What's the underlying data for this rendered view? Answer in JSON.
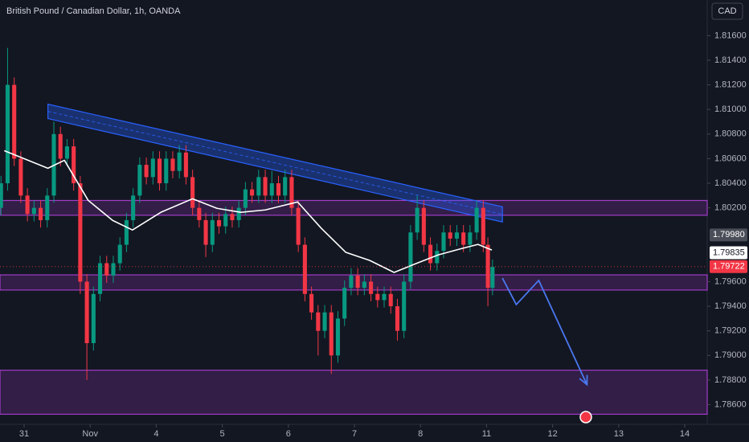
{
  "chart_data": {
    "type": "candlestick",
    "title": "British Pound / Canadian Dollar, 1h, OANDA",
    "currency_button": "CAD",
    "up_color": "#089981",
    "down_color": "#f23645",
    "xlim": [
      -0.365,
      10.34
    ],
    "xticks": [
      {
        "value": 0,
        "label": "31"
      },
      {
        "value": 1,
        "label": "Nov"
      },
      {
        "value": 2,
        "label": "4"
      },
      {
        "value": 3,
        "label": "5"
      },
      {
        "value": 4,
        "label": "6"
      },
      {
        "value": 5,
        "label": "7"
      },
      {
        "value": 6,
        "label": "8"
      },
      {
        "value": 7,
        "label": "11"
      },
      {
        "value": 8,
        "label": "12"
      },
      {
        "value": 9,
        "label": "13"
      },
      {
        "value": 10,
        "label": "14"
      }
    ],
    "ylim": [
      1.7844,
      1.8189
    ],
    "yticks": [
      {
        "value": 1.816,
        "label": "1.81600"
      },
      {
        "value": 1.814,
        "label": "1.81400"
      },
      {
        "value": 1.812,
        "label": "1.81200"
      },
      {
        "value": 1.81,
        "label": "1.81000"
      },
      {
        "value": 1.808,
        "label": "1.80800"
      },
      {
        "value": 1.806,
        "label": "1.80600"
      },
      {
        "value": 1.804,
        "label": "1.80400"
      },
      {
        "value": 1.802,
        "label": "1.80200"
      },
      {
        "value": 1.796,
        "label": "1.79600"
      },
      {
        "value": 1.794,
        "label": "1.79400"
      },
      {
        "value": 1.792,
        "label": "1.79200"
      },
      {
        "value": 1.79,
        "label": "1.79000"
      },
      {
        "value": 1.788,
        "label": "1.78800"
      },
      {
        "value": 1.786,
        "label": "1.78600"
      }
    ],
    "candles": [
      [
        -0.35,
        1.802,
        1.8046,
        1.8014,
        1.804
      ],
      [
        -0.25,
        1.804,
        1.815,
        1.8034,
        1.812
      ],
      [
        -0.15,
        1.812,
        1.8126,
        1.8054,
        1.806
      ],
      [
        -0.05,
        1.806,
        1.8066,
        1.8024,
        1.803
      ],
      [
        0.05,
        1.803,
        1.8036,
        1.8009,
        1.8015
      ],
      [
        0.15,
        1.8015,
        1.8026,
        1.8009,
        1.802
      ],
      [
        0.25,
        1.802,
        1.8026,
        1.8004,
        1.801
      ],
      [
        0.35,
        1.801,
        1.8036,
        1.8004,
        1.803
      ],
      [
        0.45,
        1.803,
        1.809,
        1.8024,
        1.808
      ],
      [
        0.55,
        1.808,
        1.8086,
        1.8054,
        1.806
      ],
      [
        0.65,
        1.806,
        1.8076,
        1.8054,
        1.807
      ],
      [
        0.75,
        1.807,
        1.8076,
        1.8034,
        1.804
      ],
      [
        0.85,
        1.804,
        1.8046,
        1.795,
        1.796
      ],
      [
        0.95,
        1.796,
        1.7966,
        1.788,
        1.791
      ],
      [
        1.05,
        1.791,
        1.7956,
        1.7904,
        1.795
      ],
      [
        1.15,
        1.795,
        1.7981,
        1.7944,
        1.7975
      ],
      [
        1.25,
        1.7975,
        1.7981,
        1.7959,
        1.7965
      ],
      [
        1.35,
        1.7965,
        1.7981,
        1.7959,
        1.7975
      ],
      [
        1.45,
        1.7975,
        1.7996,
        1.7969,
        1.799
      ],
      [
        1.55,
        1.799,
        1.8016,
        1.7984,
        1.801
      ],
      [
        1.65,
        1.801,
        1.8036,
        1.8004,
        1.803
      ],
      [
        1.75,
        1.803,
        1.8061,
        1.8024,
        1.8055
      ],
      [
        1.85,
        1.8055,
        1.8061,
        1.8039,
        1.8045
      ],
      [
        1.95,
        1.8045,
        1.8066,
        1.8039,
        1.806
      ],
      [
        2.05,
        1.806,
        1.8066,
        1.8034,
        1.804
      ],
      [
        2.15,
        1.804,
        1.8066,
        1.8034,
        1.806
      ],
      [
        2.25,
        1.806,
        1.8066,
        1.8044,
        1.805
      ],
      [
        2.35,
        1.805,
        1.8071,
        1.8044,
        1.8065
      ],
      [
        2.45,
        1.8065,
        1.8071,
        1.8039,
        1.8045
      ],
      [
        2.55,
        1.8045,
        1.8051,
        1.8014,
        1.802
      ],
      [
        2.65,
        1.802,
        1.8026,
        1.8004,
        1.801
      ],
      [
        2.75,
        1.801,
        1.8016,
        1.798,
        1.799
      ],
      [
        2.85,
        1.799,
        1.8016,
        1.7984,
        1.801
      ],
      [
        2.95,
        1.801,
        1.8016,
        1.7999,
        1.8005
      ],
      [
        3.05,
        1.8005,
        1.8021,
        1.7999,
        1.8015
      ],
      [
        3.15,
        1.8015,
        1.8021,
        1.8004,
        1.801
      ],
      [
        3.25,
        1.801,
        1.8026,
        1.8004,
        1.802
      ],
      [
        3.35,
        1.802,
        1.8041,
        1.8014,
        1.8035
      ],
      [
        3.45,
        1.8035,
        1.8041,
        1.8024,
        1.803
      ],
      [
        3.55,
        1.803,
        1.8051,
        1.8024,
        1.8045
      ],
      [
        3.65,
        1.8045,
        1.8051,
        1.8024,
        1.803
      ],
      [
        3.75,
        1.803,
        1.805,
        1.8024,
        1.804
      ],
      [
        3.85,
        1.804,
        1.8046,
        1.8024,
        1.803
      ],
      [
        3.95,
        1.803,
        1.8051,
        1.8024,
        1.8045
      ],
      [
        4.05,
        1.8045,
        1.8051,
        1.8014,
        1.802
      ],
      [
        4.15,
        1.802,
        1.8026,
        1.7984,
        1.799
      ],
      [
        4.25,
        1.799,
        1.7996,
        1.7944,
        1.795
      ],
      [
        4.35,
        1.795,
        1.7956,
        1.7929,
        1.7935
      ],
      [
        4.45,
        1.7935,
        1.7941,
        1.79,
        1.792
      ],
      [
        4.55,
        1.792,
        1.7941,
        1.7914,
        1.7935
      ],
      [
        4.65,
        1.7935,
        1.7941,
        1.7885,
        1.79
      ],
      [
        4.75,
        1.79,
        1.7936,
        1.7894,
        1.793
      ],
      [
        4.85,
        1.793,
        1.7961,
        1.7924,
        1.7955
      ],
      [
        4.95,
        1.7955,
        1.7971,
        1.7949,
        1.7965
      ],
      [
        5.05,
        1.7965,
        1.7971,
        1.7949,
        1.7955
      ],
      [
        5.15,
        1.7955,
        1.7966,
        1.7949,
        1.796
      ],
      [
        5.25,
        1.796,
        1.7966,
        1.7944,
        1.795
      ],
      [
        5.35,
        1.795,
        1.7956,
        1.7939,
        1.7945
      ],
      [
        5.45,
        1.7945,
        1.7956,
        1.7939,
        1.795
      ],
      [
        5.55,
        1.795,
        1.7956,
        1.7934,
        1.794
      ],
      [
        5.65,
        1.794,
        1.7946,
        1.7912,
        1.792
      ],
      [
        5.75,
        1.792,
        1.7966,
        1.7914,
        1.796
      ],
      [
        5.85,
        1.796,
        1.8006,
        1.7954,
        1.8
      ],
      [
        5.95,
        1.8,
        1.803,
        1.7994,
        1.802
      ],
      [
        6.05,
        1.802,
        1.8026,
        1.7984,
        1.799
      ],
      [
        6.15,
        1.799,
        1.7996,
        1.7969,
        1.7975
      ],
      [
        6.25,
        1.7975,
        1.7991,
        1.7969,
        1.7985
      ],
      [
        6.35,
        1.7985,
        1.8006,
        1.7979,
        1.8
      ],
      [
        6.45,
        1.8,
        1.8006,
        1.7989,
        1.7995
      ],
      [
        6.55,
        1.7995,
        1.8006,
        1.7989,
        1.8
      ],
      [
        6.65,
        1.8,
        1.8006,
        1.7984,
        1.799
      ],
      [
        6.75,
        1.799,
        1.8006,
        1.7984,
        1.8
      ],
      [
        6.85,
        1.8,
        1.8026,
        1.7994,
        1.802
      ],
      [
        6.95,
        1.802,
        1.8026,
        1.7984,
        1.799
      ],
      [
        7.02,
        1.799,
        1.7996,
        1.794,
        1.7955
      ],
      [
        7.09,
        1.7955,
        1.7978,
        1.7949,
        1.7972
      ]
    ],
    "moving_average": {
      "color": "#ffffff",
      "x": [
        -0.3,
        0.36,
        0.61,
        0.97,
        1.34,
        1.64,
        2.07,
        2.55,
        2.92,
        3.28,
        3.65,
        4.14,
        4.5,
        4.87,
        5.23,
        5.6,
        5.9,
        6.27,
        6.63,
        6.87,
        7.08
      ],
      "values": [
        1.80665,
        1.80522,
        1.80587,
        1.80261,
        1.80098,
        1.8002,
        1.80164,
        1.80274,
        1.80196,
        1.80164,
        1.80183,
        1.80248,
        1.80033,
        1.79838,
        1.79773,
        1.79675,
        1.7974,
        1.79818,
        1.7987,
        1.79903,
        1.79857
      ]
    },
    "zones": [
      [
        1.8026,
        1.8014
      ],
      [
        1.79655,
        1.79532
      ],
      [
        1.7888,
        1.78522
      ]
    ],
    "zone_color": "#a23cc8",
    "channel": {
      "color": "#2962ff",
      "x": [
        0.36,
        7.24
      ],
      "top": [
        1.81043,
        1.80209
      ],
      "bottom": [
        1.80926,
        1.80085
      ]
    },
    "projection": {
      "color": "#4a78f0",
      "x": [
        7.24,
        7.45,
        7.79,
        8.52
      ],
      "values": [
        1.79629,
        1.79414,
        1.7961,
        1.78763
      ]
    },
    "price_labels": [
      {
        "value": 1.7998,
        "label": "1.79980",
        "bg": "#4a4e58",
        "fg": "#ffffff"
      },
      {
        "value": 1.79835,
        "label": "1.79835",
        "bg": "#ffffff",
        "fg": "#131722"
      },
      {
        "value": 1.79722,
        "label": "1.79722",
        "bg": "#f23645",
        "fg": "#ffffff"
      }
    ]
  }
}
